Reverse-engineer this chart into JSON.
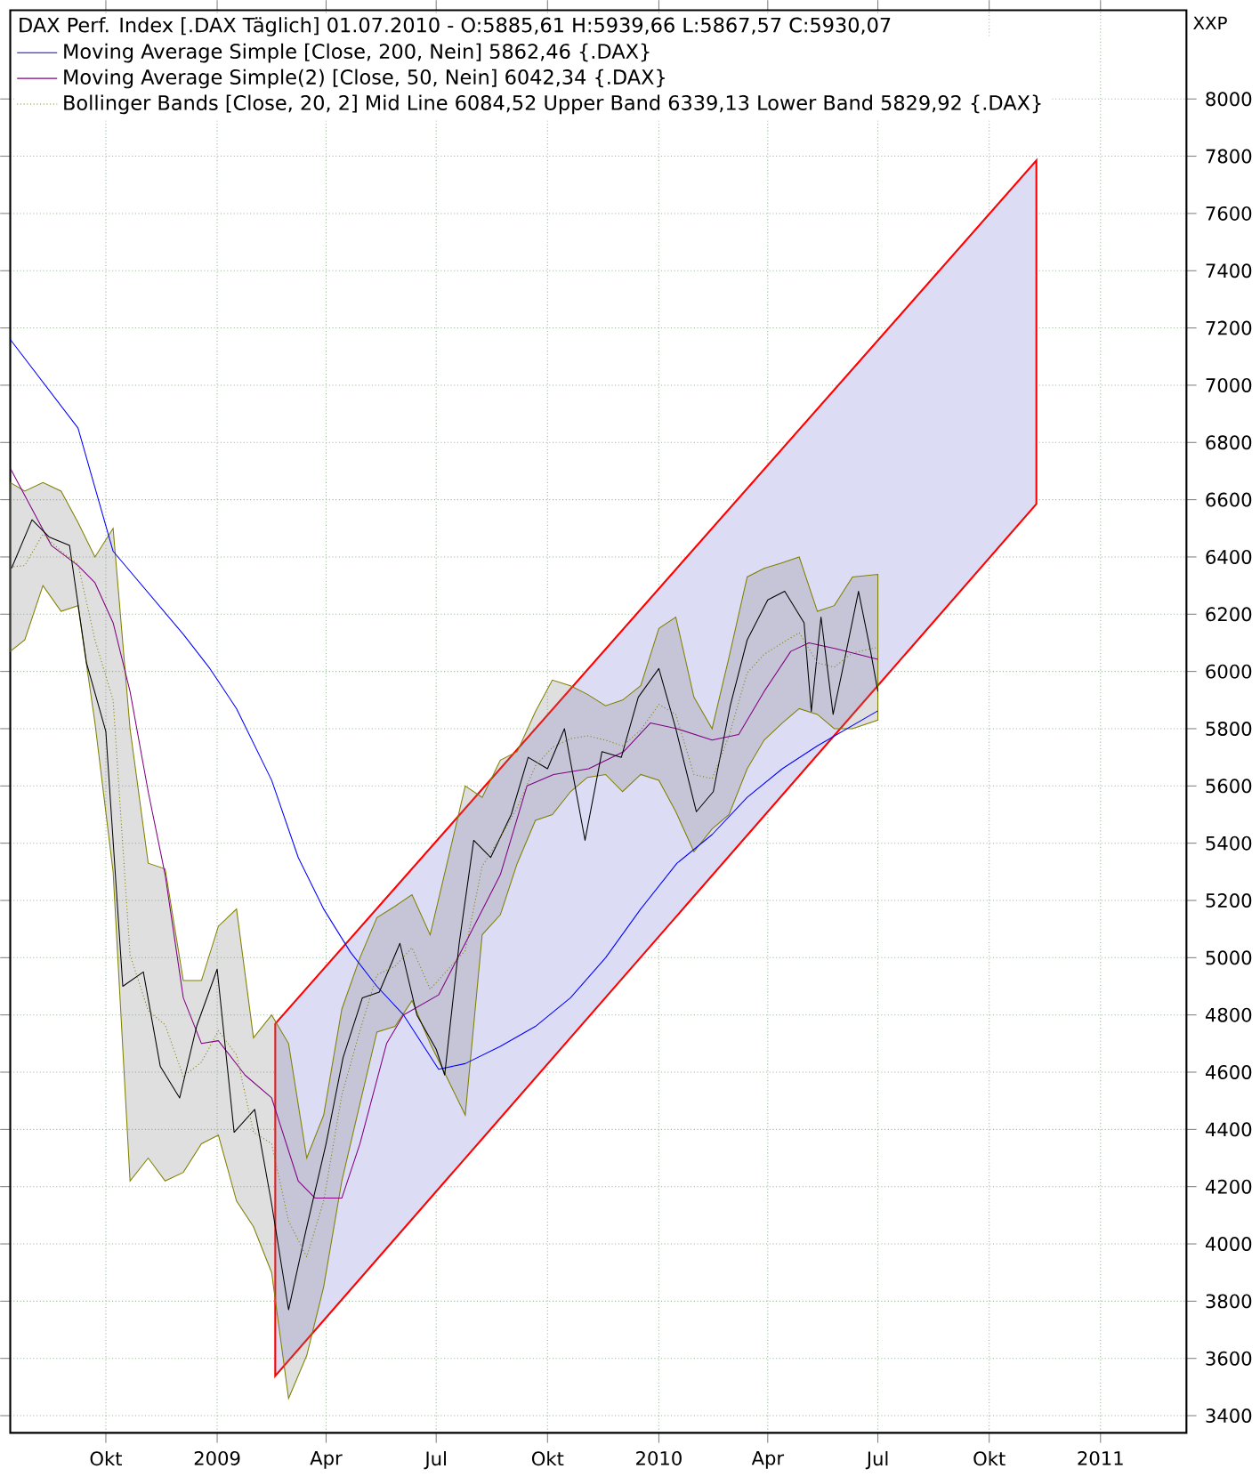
{
  "chart_data": {
    "type": "line",
    "title": "DAX Perf. Index [.DAX  Täglich] 01.07.2010 - O:5885,61 H:5939,66 L:5867,57 C:5930,07",
    "annotations": [
      "XXP"
    ],
    "xlim": [
      "2008-07-14",
      "2011-03-13"
    ],
    "ylim": [
      3340,
      8310
    ],
    "xticks": [
      {
        "value": "2008-10-01",
        "label": "Okt"
      },
      {
        "value": "2009-01-01",
        "label": "2009"
      },
      {
        "value": "2009-04-01",
        "label": "Apr"
      },
      {
        "value": "2009-07-01",
        "label": "Jul"
      },
      {
        "value": "2009-10-01",
        "label": "Okt"
      },
      {
        "value": "2010-01-01",
        "label": "2010"
      },
      {
        "value": "2010-04-01",
        "label": "Apr"
      },
      {
        "value": "2010-07-01",
        "label": "Jul"
      },
      {
        "value": "2010-10-01",
        "label": "Okt"
      },
      {
        "value": "2011-01-01",
        "label": "2011"
      }
    ],
    "yticks": [
      3400,
      3600,
      3800,
      4000,
      4200,
      4400,
      4600,
      4800,
      5000,
      5200,
      5400,
      5600,
      5800,
      6000,
      6200,
      6400,
      6600,
      6800,
      7000,
      7200,
      7400,
      7600,
      7800,
      8000
    ],
    "grid": true,
    "legend": "top left",
    "marker": "none",
    "series": [
      {
        "color": "#ff0000",
        "x": [
          "2009-02-18",
          "2010-11-09"
        ],
        "values": [
          null,
          null
        ],
        "upper": [
          4769,
          7785
        ],
        "lower": [
          3539,
          6585
        ]
      },
      {
        "name": "Bollinger Bands [Close, 20, 2] Mid Line 6084,52 Upper Band 6339,13 Lower Band 5829,92 {.DAX}",
        "color": "#808000",
        "line_style": "dotted",
        "x": [
          "2008-07-14",
          "2008-07-26",
          "2008-08-10",
          "2008-08-25",
          "2008-09-08",
          "2008-09-22",
          "2008-10-07",
          "2008-10-21",
          "2008-11-05",
          "2008-11-19",
          "2008-12-04",
          "2008-12-19",
          "2009-01-02",
          "2009-01-17",
          "2009-01-31",
          "2009-02-15",
          "2009-03-01",
          "2009-03-16",
          "2009-03-30",
          "2009-04-14",
          "2009-04-29",
          "2009-05-13",
          "2009-05-28",
          "2009-06-11",
          "2009-06-26",
          "2009-07-10",
          "2009-07-25",
          "2009-08-08",
          "2009-08-23",
          "2009-09-06",
          "2009-09-21",
          "2009-10-05",
          "2009-10-20",
          "2009-11-03",
          "2009-11-18",
          "2009-12-02",
          "2009-12-17",
          "2010-01-01",
          "2010-01-15",
          "2010-01-30",
          "2010-02-14",
          "2010-02-28",
          "2010-03-15",
          "2010-03-29",
          "2010-04-13",
          "2010-04-27",
          "2010-05-12",
          "2010-05-26",
          "2010-06-10",
          "2010-07-01"
        ],
        "values": [
          6365,
          6370,
          6480,
          6420,
          6375,
          6110,
          5900,
          5010,
          4815,
          4765,
          4585,
          4635,
          4745,
          4660,
          4390,
          4350,
          4080,
          3955,
          4150,
          4520,
          4745,
          4940,
          4970,
          5035,
          4890,
          4955,
          5025,
          5320,
          5420,
          5525,
          5670,
          5735,
          5765,
          5775,
          5760,
          5740,
          5795,
          5885,
          5850,
          5640,
          5625,
          5775,
          5995,
          6060,
          6100,
          6135,
          6030,
          6015,
          6065,
          6084.52
        ],
        "upper": [
          6660,
          6630,
          6660,
          6630,
          6520,
          6400,
          6500,
          5800,
          5330,
          5310,
          4920,
          4920,
          5110,
          5170,
          4720,
          4800,
          4700,
          4300,
          4450,
          4820,
          5000,
          5140,
          5180,
          5220,
          5080,
          5330,
          5600,
          5560,
          5690,
          5720,
          5860,
          5970,
          5950,
          5920,
          5880,
          5900,
          5950,
          6150,
          6190,
          5910,
          5800,
          6050,
          6330,
          6360,
          6380,
          6400,
          6210,
          6230,
          6330,
          6339.13
        ],
        "lower": [
          6070,
          6110,
          6300,
          6210,
          6230,
          5820,
          5300,
          4220,
          4300,
          4220,
          4250,
          4350,
          4380,
          4150,
          4060,
          3900,
          3460,
          3610,
          3850,
          4220,
          4490,
          4740,
          4760,
          4850,
          4700,
          4580,
          4450,
          5080,
          5150,
          5330,
          5480,
          5500,
          5580,
          5630,
          5640,
          5580,
          5640,
          5620,
          5510,
          5370,
          5450,
          5500,
          5660,
          5760,
          5820,
          5870,
          5850,
          5800,
          5800,
          5829.92
        ]
      },
      {
        "name": "Moving Average Simple [Close, 200, Nein] 5862,46 {.DAX}",
        "color": "#0000ff",
        "x": [
          "2008-07-14",
          "2008-09-08",
          "2008-10-07",
          "2008-12-04",
          "2008-12-26",
          "2009-01-17",
          "2009-02-15",
          "2009-03-09",
          "2009-03-30",
          "2009-04-21",
          "2009-05-13",
          "2009-06-04",
          "2009-07-03",
          "2009-07-25",
          "2009-08-23",
          "2009-09-21",
          "2009-10-20",
          "2009-11-18",
          "2009-12-17",
          "2010-01-16",
          "2010-02-14",
          "2010-03-15",
          "2010-04-13",
          "2010-05-12",
          "2010-07-01"
        ],
        "values": [
          7160,
          6850,
          6420,
          6130,
          6010,
          5870,
          5620,
          5350,
          5170,
          5020,
          4900,
          4800,
          4610,
          4630,
          4690,
          4760,
          4860,
          5000,
          5170,
          5330,
          5430,
          5560,
          5660,
          5740,
          5862.46
        ]
      },
      {
        "name": "Moving Average Simple(2) [Close, 50, Nein] 6042,34 {.DAX}",
        "color": "#800080",
        "x": [
          "2008-07-14",
          "2008-08-17",
          "2008-09-08",
          "2008-09-22",
          "2008-10-07",
          "2008-10-21",
          "2008-11-05",
          "2008-11-19",
          "2008-12-04",
          "2008-12-19",
          "2009-01-02",
          "2009-01-24",
          "2009-02-15",
          "2009-03-09",
          "2009-03-23",
          "2009-04-14",
          "2009-04-29",
          "2009-05-21",
          "2009-06-04",
          "2009-07-03",
          "2009-07-25",
          "2009-08-23",
          "2009-09-14",
          "2009-10-06",
          "2009-11-04",
          "2009-12-03",
          "2009-12-25",
          "2010-01-16",
          "2010-02-14",
          "2010-03-08",
          "2010-03-29",
          "2010-04-20",
          "2010-05-05",
          "2010-05-27",
          "2010-07-01"
        ],
        "values": [
          6710,
          6440,
          6370,
          6310,
          6170,
          5930,
          5580,
          5290,
          4860,
          4700,
          4710,
          4590,
          4510,
          4220,
          4160,
          4160,
          4350,
          4700,
          4800,
          4870,
          5050,
          5290,
          5600,
          5640,
          5660,
          5720,
          5820,
          5800,
          5760,
          5780,
          5930,
          6070,
          6100,
          6080,
          6042.34
        ]
      },
      {
        "color": "#000000",
        "x": [
          "2008-07-15",
          "2008-08-01",
          "2008-08-15",
          "2008-09-01",
          "2008-09-15",
          "2008-10-01",
          "2008-10-15",
          "2008-11-01",
          "2008-11-15",
          "2008-12-01",
          "2008-12-15",
          "2009-01-01",
          "2009-01-15",
          "2009-02-01",
          "2009-02-15",
          "2009-03-01",
          "2009-03-15",
          "2009-04-01",
          "2009-04-15",
          "2009-05-01",
          "2009-05-15",
          "2009-06-01",
          "2009-06-15",
          "2009-07-01",
          "2009-07-08",
          "2009-07-20",
          "2009-08-01",
          "2009-08-15",
          "2009-09-01",
          "2009-09-15",
          "2009-10-01",
          "2009-10-15",
          "2009-11-01",
          "2009-11-15",
          "2009-12-01",
          "2009-12-15",
          "2010-01-01",
          "2010-01-15",
          "2010-02-01",
          "2010-02-15",
          "2010-03-01",
          "2010-03-15",
          "2010-04-01",
          "2010-04-15",
          "2010-05-01",
          "2010-05-07",
          "2010-05-15",
          "2010-05-25",
          "2010-06-01",
          "2010-06-15",
          "2010-06-25",
          "2010-07-01"
        ],
        "values": [
          6360,
          6530,
          6470,
          6440,
          6030,
          5790,
          4900,
          4950,
          4620,
          4510,
          4760,
          4960,
          4390,
          4470,
          4140,
          3770,
          4040,
          4350,
          4650,
          4860,
          4880,
          5050,
          4800,
          4680,
          4590,
          5050,
          5410,
          5350,
          5500,
          5700,
          5660,
          5800,
          5410,
          5720,
          5700,
          5910,
          6010,
          5800,
          5510,
          5580,
          5880,
          6110,
          6250,
          6280,
          6170,
          5860,
          6190,
          5850,
          5990,
          6280,
          6070,
          5930.07
        ]
      }
    ]
  }
}
